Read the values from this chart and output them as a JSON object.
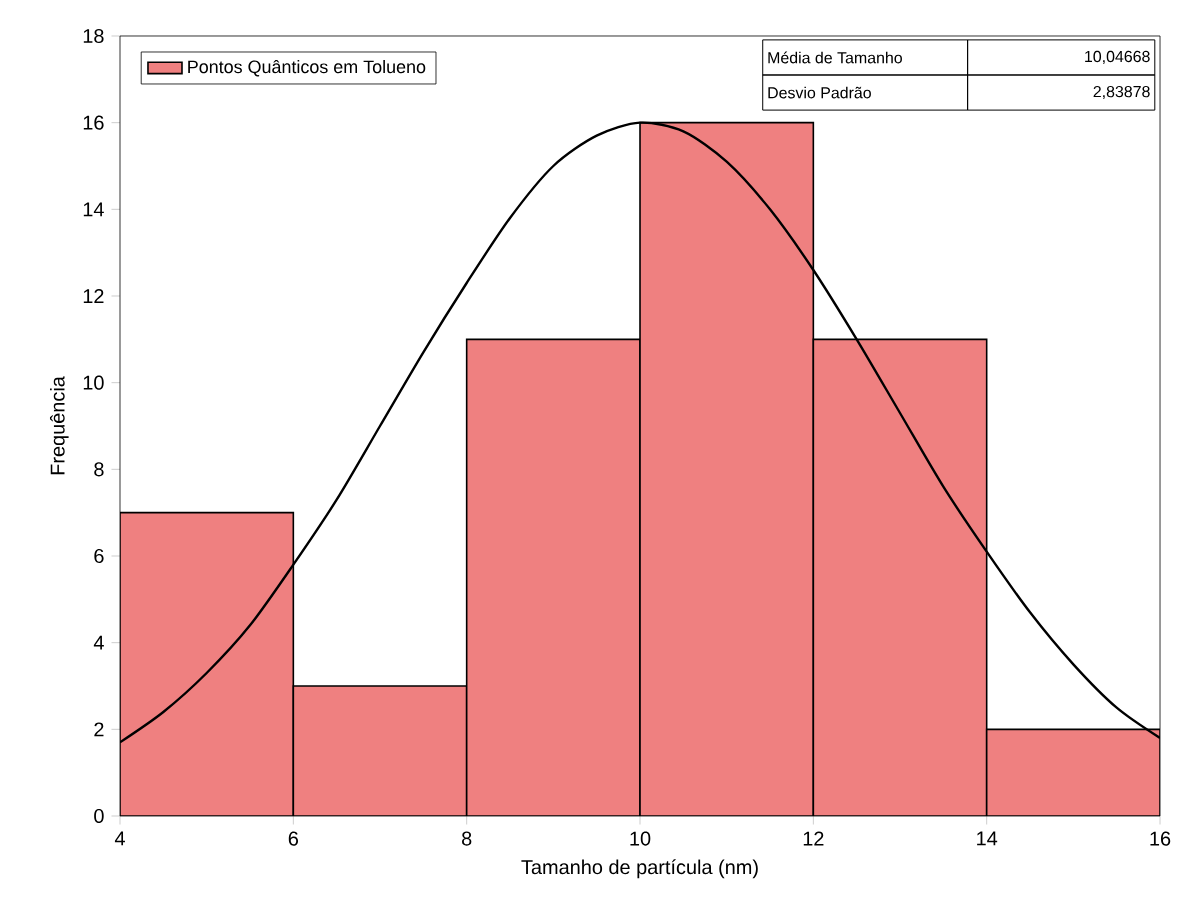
{
  "chart_data": {
    "type": "histogram",
    "xlabel": "Tamanho de partícula (nm)",
    "ylabel": "Frequência",
    "series": [
      {
        "name": "Pontos Quânticos em Tolueno",
        "color": "#ef8080",
        "bins": [
          4,
          6,
          8,
          10,
          12,
          14,
          16
        ],
        "values": [
          7,
          3,
          11,
          16,
          11,
          2
        ]
      },
      {
        "type": "line",
        "color": "#000000",
        "x": [
          4,
          4.5,
          5,
          5.5,
          6,
          6.5,
          7,
          7.5,
          8,
          8.5,
          9,
          9.5,
          10,
          10.5,
          11,
          11.5,
          12,
          12.5,
          13,
          13.5,
          14,
          14.5,
          15,
          15.5,
          16
        ],
        "values": [
          1.7,
          2.4,
          3.3,
          4.4,
          5.8,
          7.3,
          9.0,
          10.7,
          12.3,
          13.8,
          15.0,
          15.7,
          16.0,
          15.8,
          15.1,
          14.0,
          12.6,
          11.0,
          9.3,
          7.6,
          6.1,
          4.7,
          3.5,
          2.5,
          1.8
        ]
      }
    ],
    "annotations": [
      "Média de Tamanho",
      "10,04668",
      "Desvio Padrão",
      "2,83878"
    ],
    "xlim": [
      4,
      16
    ],
    "xticks": [
      4,
      6,
      8,
      10,
      12,
      14,
      16
    ],
    "ylim": [
      0,
      18
    ],
    "yticks": [
      0,
      2,
      4,
      6,
      8,
      10,
      12,
      14,
      16,
      18
    ],
    "legend": "top left",
    "grid": false
  }
}
